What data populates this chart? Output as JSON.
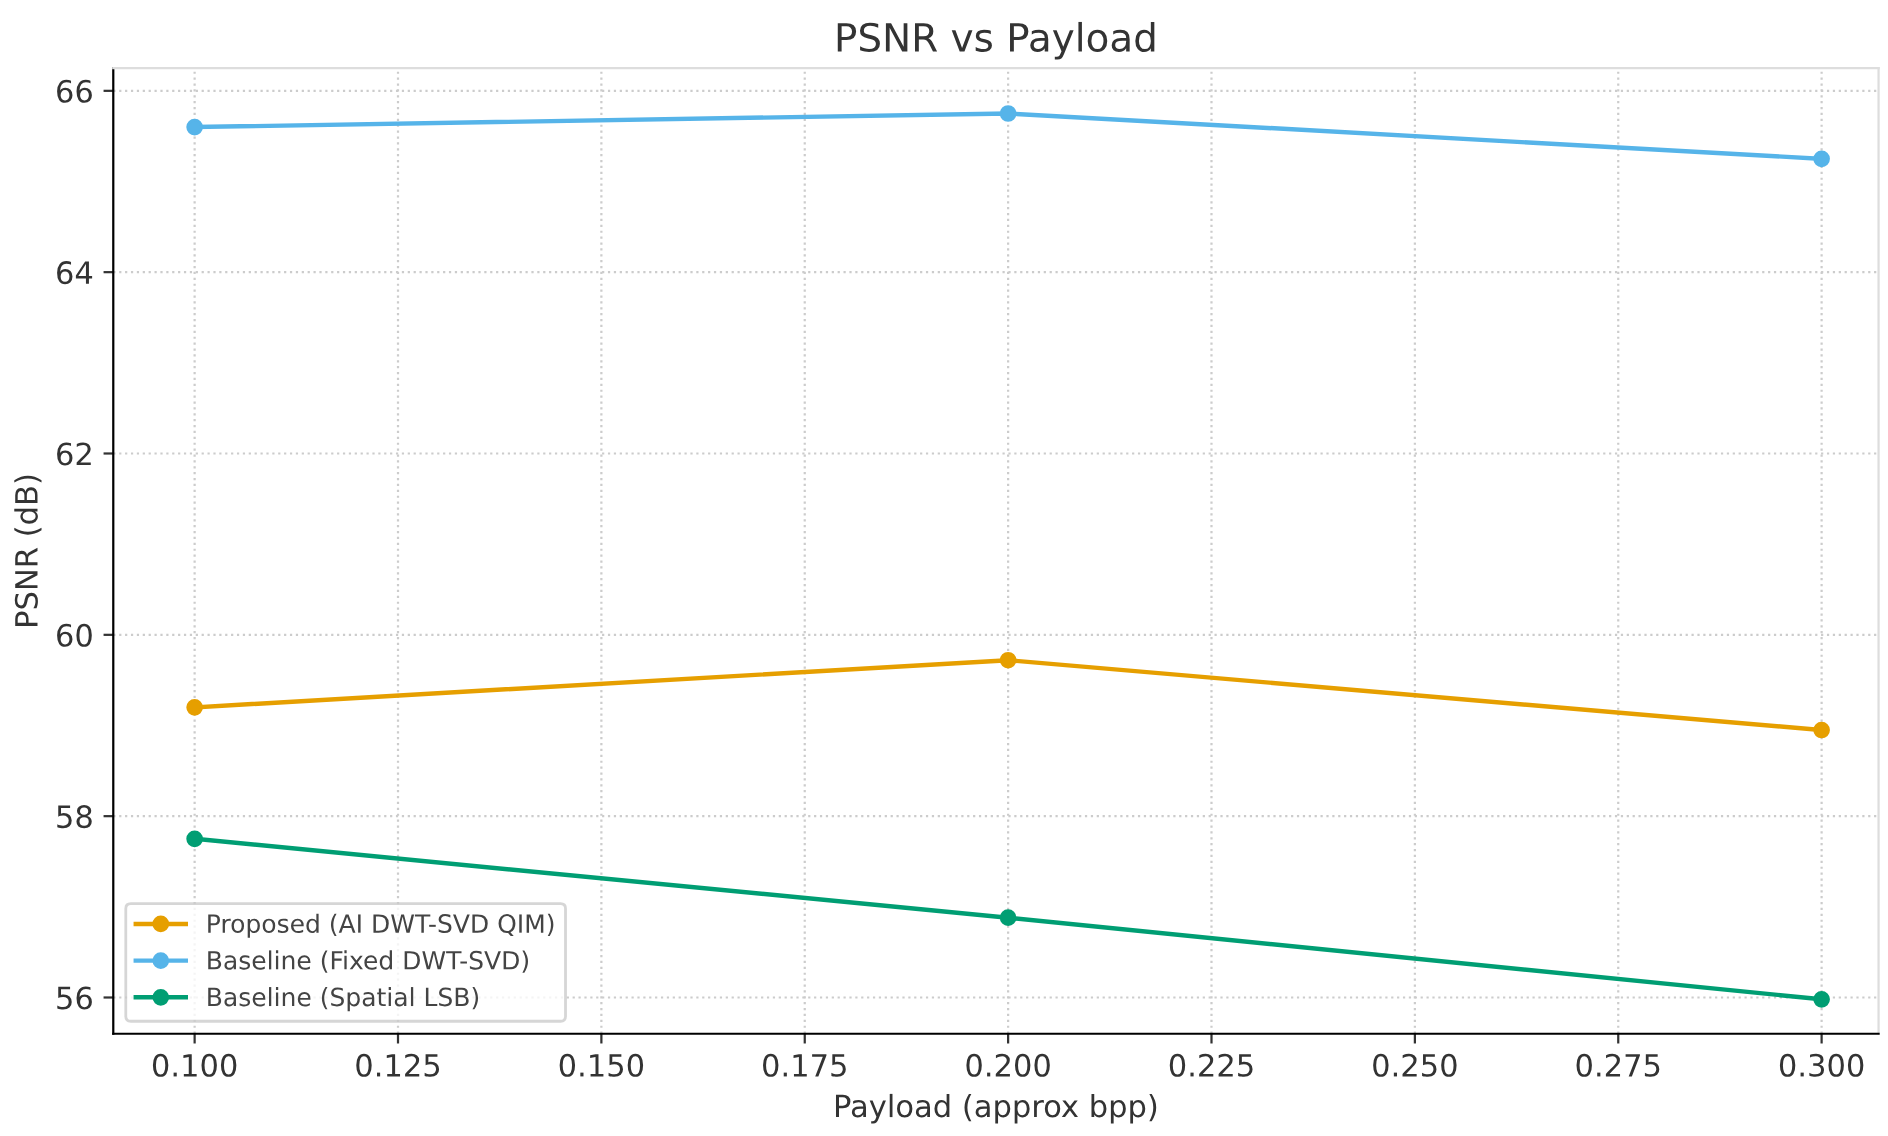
{
  "chart_data": {
    "type": "line",
    "title": "PSNR vs Payload",
    "xlabel": "Payload (approx bpp)",
    "ylabel": "PSNR (dB)",
    "x": [
      0.1,
      0.2,
      0.3
    ],
    "series": [
      {
        "name": "Proposed (AI DWT-SVD QIM)",
        "color": "#e69f00",
        "values": [
          59.2,
          59.72,
          58.95
        ]
      },
      {
        "name": "Baseline (Fixed DWT-SVD)",
        "color": "#56b4e9",
        "values": [
          65.6,
          65.75,
          65.25
        ]
      },
      {
        "name": "Baseline (Spatial LSB)",
        "color": "#009e73",
        "values": [
          57.75,
          56.88,
          55.98
        ]
      }
    ],
    "xlim": [
      0.09,
      0.307
    ],
    "ylim": [
      55.6,
      66.25
    ],
    "xticks": [
      {
        "value": 0.1,
        "label": "0.100"
      },
      {
        "value": 0.125,
        "label": "0.125"
      },
      {
        "value": 0.15,
        "label": "0.150"
      },
      {
        "value": 0.175,
        "label": "0.175"
      },
      {
        "value": 0.2,
        "label": "0.200"
      },
      {
        "value": 0.225,
        "label": "0.225"
      },
      {
        "value": 0.25,
        "label": "0.250"
      },
      {
        "value": 0.275,
        "label": "0.275"
      },
      {
        "value": 0.3,
        "label": "0.300"
      }
    ],
    "yticks": [
      56,
      58,
      60,
      62,
      64,
      66
    ],
    "grid": true,
    "legend": "bottom left",
    "marker": "circle",
    "line_style": "solid"
  }
}
